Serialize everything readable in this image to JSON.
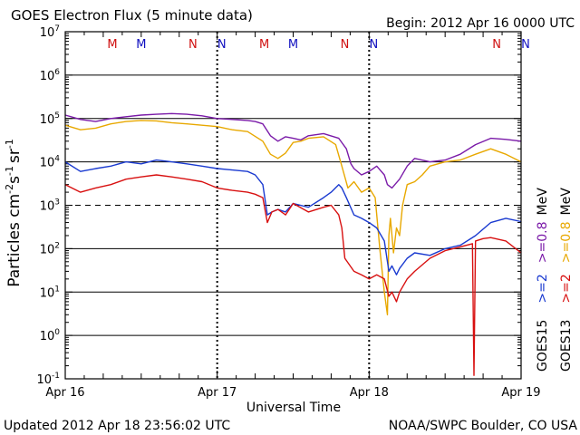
{
  "chart_data": {
    "type": "line",
    "title": "GOES Electron Flux (5 minute data)",
    "begin_label": "Begin: 2012 Apr 16 0000 UTC",
    "xlabel": "Universal Time",
    "ylabel_prefix": "Particles cm",
    "ylabel_sup1": "-2",
    "ylabel_mid1": "s",
    "ylabel_sup2": "-1",
    "ylabel_mid2": "sr",
    "ylabel_sup3": "-1",
    "updated_label": "Updated 2012 Apr 18 23:56:02 UTC",
    "credit_label": "NOAA/SWPC Boulder, CO USA",
    "x_ticks": [
      "Apr 16",
      "Apr 17",
      "Apr 18",
      "Apr 19"
    ],
    "ylim_log10": [
      -1,
      7
    ],
    "y_ticks": [
      {
        "base": "10",
        "exp": "7"
      },
      {
        "base": "10",
        "exp": "6"
      },
      {
        "base": "10",
        "exp": "5"
      },
      {
        "base": "10",
        "exp": "4"
      },
      {
        "base": "10",
        "exp": "3"
      },
      {
        "base": "10",
        "exp": "2"
      },
      {
        "base": "10",
        "exp": "1"
      },
      {
        "base": "10",
        "exp": "0"
      },
      {
        "base": "10",
        "exp": "-1"
      }
    ],
    "markers": [
      {
        "label": "M",
        "day": 0.31,
        "color": "#d01010"
      },
      {
        "label": "M",
        "day": 0.5,
        "color": "#1010c0"
      },
      {
        "label": "N",
        "day": 0.84,
        "color": "#d01010"
      },
      {
        "label": "N",
        "day": 1.03,
        "color": "#1010c0"
      },
      {
        "label": "M",
        "day": 1.31,
        "color": "#d01010"
      },
      {
        "label": "M",
        "day": 1.5,
        "color": "#1010c0"
      },
      {
        "label": "N",
        "day": 1.84,
        "color": "#d01010"
      },
      {
        "label": "N",
        "day": 2.03,
        "color": "#1010c0"
      },
      {
        "label": "N",
        "day": 2.84,
        "color": "#d01010"
      },
      {
        "label": "N",
        "day": 3.03,
        "color": "#1010c0"
      }
    ],
    "legend": {
      "col1": {
        "sat": "GOES15",
        "e2": ">=2",
        "e08": ">=0.8",
        "unit": "MeV"
      },
      "col2": {
        "sat": "GOES13",
        "e2": ">=2",
        "e08": ">=0.8",
        "unit": "MeV"
      }
    },
    "grid_solid_log10": [
      6,
      5,
      4,
      2,
      1,
      0
    ],
    "grid_dashed_log10": [
      3
    ],
    "day_separators_x": [
      1,
      2
    ],
    "series": [
      {
        "key": "goes15_08",
        "color": "#7a1aa8",
        "x": [
          0,
          0.1,
          0.2,
          0.3,
          0.4,
          0.5,
          0.6,
          0.7,
          0.8,
          0.9,
          1.0,
          1.1,
          1.2,
          1.25,
          1.3,
          1.35,
          1.4,
          1.45,
          1.5,
          1.55,
          1.6,
          1.7,
          1.8,
          1.85,
          1.88,
          1.9,
          1.95,
          2.0,
          2.05,
          2.1,
          2.12,
          2.15,
          2.2,
          2.25,
          2.3,
          2.4,
          2.5,
          2.6,
          2.7,
          2.8,
          2.9,
          3.0
        ],
        "y": [
          120000,
          95000,
          85000,
          100000,
          110000,
          120000,
          125000,
          130000,
          125000,
          115000,
          100000,
          95000,
          90000,
          85000,
          75000,
          40000,
          30000,
          38000,
          35000,
          32000,
          40000,
          45000,
          35000,
          20000,
          9000,
          7000,
          5000,
          6000,
          8000,
          5000,
          3000,
          2500,
          4000,
          8000,
          12000,
          10000,
          11000,
          15000,
          25000,
          35000,
          33000,
          30000
        ]
      },
      {
        "key": "goes13_08",
        "color": "#e8a800",
        "x": [
          0,
          0.1,
          0.2,
          0.3,
          0.4,
          0.5,
          0.6,
          0.7,
          0.8,
          0.9,
          1.0,
          1.1,
          1.2,
          1.3,
          1.35,
          1.4,
          1.45,
          1.5,
          1.55,
          1.6,
          1.7,
          1.78,
          1.82,
          1.86,
          1.9,
          1.95,
          2.0,
          2.04,
          2.07,
          2.1,
          2.12,
          2.13,
          2.14,
          2.16,
          2.18,
          2.2,
          2.22,
          2.25,
          2.3,
          2.35,
          2.4,
          2.5,
          2.6,
          2.7,
          2.8,
          2.9,
          3.0
        ],
        "y": [
          70000,
          55000,
          60000,
          75000,
          85000,
          90000,
          88000,
          80000,
          75000,
          70000,
          65000,
          55000,
          50000,
          30000,
          15000,
          12000,
          16000,
          28000,
          30000,
          35000,
          38000,
          25000,
          8000,
          2500,
          3500,
          2000,
          2500,
          1500,
          100,
          10,
          3,
          200,
          500,
          80,
          300,
          200,
          1000,
          3000,
          3500,
          5000,
          8000,
          10000,
          11000,
          15000,
          20000,
          15000,
          10000
        ]
      },
      {
        "key": "goes15_2",
        "color": "#1a3ad0",
        "x": [
          0,
          0.1,
          0.2,
          0.3,
          0.4,
          0.5,
          0.6,
          0.7,
          0.8,
          0.9,
          1.0,
          1.1,
          1.2,
          1.25,
          1.3,
          1.33,
          1.36,
          1.4,
          1.45,
          1.5,
          1.6,
          1.7,
          1.75,
          1.8,
          1.82,
          1.85,
          1.9,
          1.95,
          2.0,
          2.05,
          2.1,
          2.13,
          2.15,
          2.18,
          2.2,
          2.25,
          2.3,
          2.4,
          2.5,
          2.6,
          2.7,
          2.8,
          2.9,
          3.0
        ],
        "y": [
          10000,
          6000,
          7000,
          8000,
          10000,
          9000,
          11000,
          10000,
          9000,
          8000,
          7000,
          6500,
          6000,
          5000,
          3000,
          600,
          700,
          800,
          700,
          1100,
          900,
          1500,
          2000,
          3000,
          2500,
          1500,
          600,
          500,
          400,
          300,
          150,
          30,
          40,
          25,
          35,
          60,
          80,
          70,
          100,
          120,
          200,
          400,
          500,
          420
        ]
      },
      {
        "key": "goes13_2",
        "color": "#d81010",
        "x": [
          0,
          0.1,
          0.2,
          0.3,
          0.4,
          0.5,
          0.6,
          0.7,
          0.8,
          0.9,
          1.0,
          1.1,
          1.2,
          1.25,
          1.3,
          1.33,
          1.36,
          1.4,
          1.45,
          1.5,
          1.6,
          1.7,
          1.75,
          1.8,
          1.82,
          1.84,
          1.9,
          1.95,
          2.0,
          2.05,
          2.1,
          2.13,
          2.15,
          2.18,
          2.2,
          2.25,
          2.3,
          2.4,
          2.5,
          2.6,
          2.68,
          2.69,
          2.7,
          2.75,
          2.8,
          2.9,
          3.0
        ],
        "y": [
          3000,
          2000,
          2500,
          3000,
          4000,
          4500,
          5000,
          4500,
          4000,
          3500,
          2500,
          2200,
          2000,
          1800,
          1500,
          400,
          700,
          800,
          600,
          1100,
          700,
          900,
          1000,
          600,
          300,
          60,
          30,
          25,
          20,
          25,
          20,
          8,
          10,
          6,
          10,
          20,
          30,
          60,
          90,
          110,
          130,
          0.12,
          150,
          170,
          180,
          150,
          80
        ]
      }
    ]
  }
}
